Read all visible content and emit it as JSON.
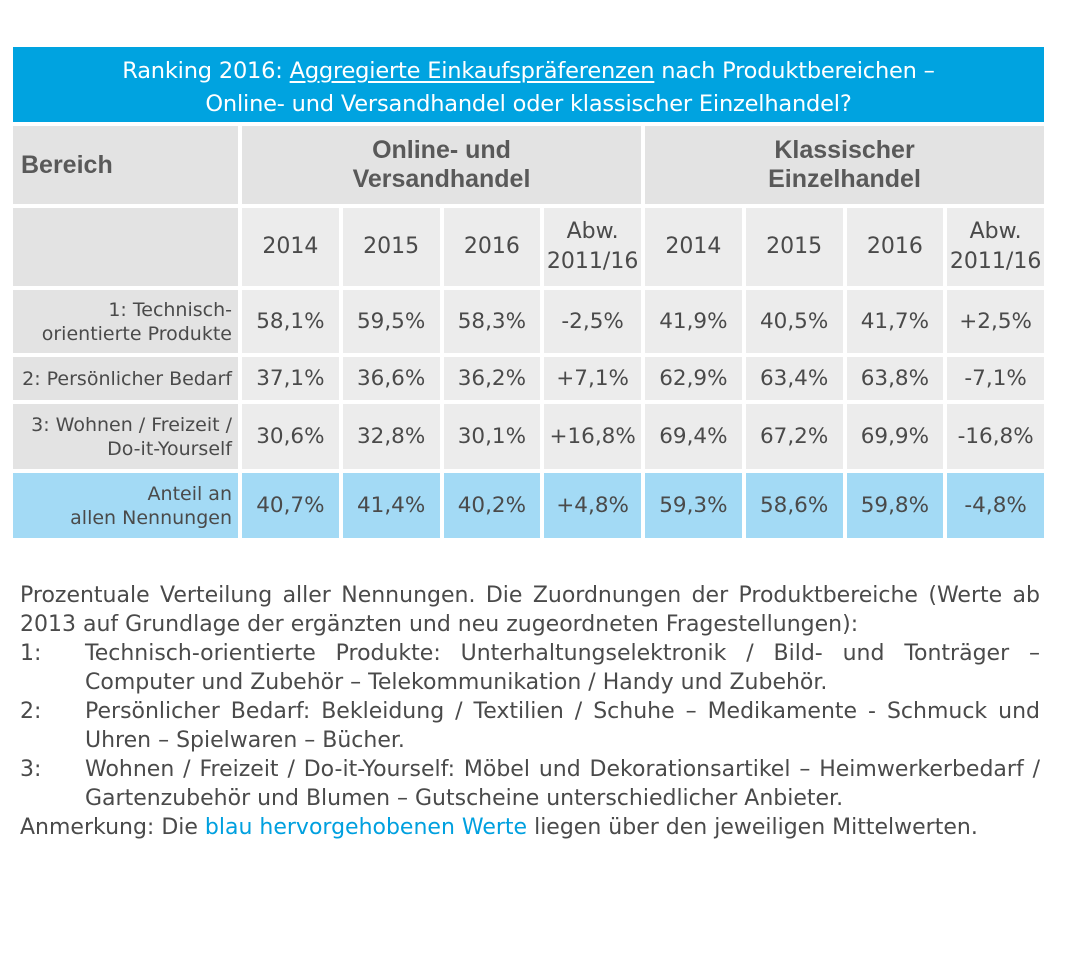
{
  "title": {
    "prefix": "Ranking 2016: ",
    "underlined": "Aggregierte Einkaufspräferenzen",
    "suffix": " nach Produktbereichen –",
    "line2": "Online- und Versandhandel oder klassischer Einzelhandel?"
  },
  "header": {
    "bereich": "Bereich",
    "online_line1": "Online- und",
    "online_line2": "Versandhandel",
    "klassisch_line1": "Klassischer",
    "klassisch_line2": "Einzelhandel",
    "years": [
      "2014",
      "2015",
      "2016"
    ],
    "abw_line1": "Abw.",
    "abw_line2": "2011/16"
  },
  "rows": [
    {
      "label_line1": "1: Technisch-",
      "label_line2": "orientierte Produkte",
      "online": [
        "58,1%",
        "59,5%",
        "58,3%",
        "-2,5%"
      ],
      "online_highlight": [
        true,
        true,
        true,
        false
      ],
      "klassisch": [
        "41,9%",
        "40,5%",
        "41,7%",
        "+2,5%"
      ],
      "klassisch_highlight": [
        false,
        false,
        false,
        false
      ]
    },
    {
      "label_line1": "2: Persönlicher Bedarf",
      "label_line2": "",
      "online": [
        "37,1%",
        "36,6%",
        "36,2%",
        "+7,1%"
      ],
      "online_highlight": [
        false,
        false,
        false,
        false
      ],
      "klassisch": [
        "62,9%",
        "63,4%",
        "63,8%",
        "-7,1%"
      ],
      "klassisch_highlight": [
        true,
        true,
        true,
        false
      ]
    },
    {
      "label_line1": "3: Wohnen / Freizeit /",
      "label_line2": "Do-it-Yourself",
      "online": [
        "30,6%",
        "32,8%",
        "30,1%",
        "+16,8%"
      ],
      "online_highlight": [
        false,
        false,
        false,
        false
      ],
      "klassisch": [
        "69,4%",
        "67,2%",
        "69,9%",
        "-16,8%"
      ],
      "klassisch_highlight": [
        true,
        true,
        true,
        false
      ]
    },
    {
      "label_line1": "Anteil an",
      "label_line2": "allen Nennungen",
      "online": [
        "40,7%",
        "41,4%",
        "40,2%",
        "+4,8%"
      ],
      "online_highlight": [
        false,
        false,
        false,
        false
      ],
      "klassisch": [
        "59,3%",
        "58,6%",
        "59,8%",
        "-4,8%"
      ],
      "klassisch_highlight": [
        false,
        false,
        false,
        false
      ]
    }
  ],
  "notes": {
    "intro": "Prozentuale Verteilung aller Nennungen. Die Zuordnungen der Produktbereiche (Werte ab 2013 auf Grundlage der ergänzten und neu zugeordneten Fragestellungen):",
    "items": [
      {
        "num": "1:",
        "text": "Technisch-orientierte Produkte: Unterhaltungselektronik / Bild- und Tonträger – Computer und Zubehör – Telekommunikation / Handy und Zubehör."
      },
      {
        "num": "2:",
        "text": "Persönlicher Bedarf: Bekleidung / Textilien / Schuhe – Medikamente - Schmuck und Uhren – Spielwaren – Bücher."
      },
      {
        "num": "3:",
        "text": "Wohnen / Freizeit / Do-it-Yourself: Möbel und Dekorationsartikel – Heimwerkerbedarf / Gartenzubehör und Blumen – Gutscheine unterschiedlicher Anbieter."
      }
    ],
    "remark_prefix": "Anmerkung: Die ",
    "remark_blue": "blau hervorgehobenen Werte",
    "remark_suffix": " liegen über den jeweiligen Mittelwerten."
  },
  "colors": {
    "title_bg": "#00a3e0",
    "highlight_text": "#00a0df",
    "header_bg": "#e3e3e3",
    "cell_bg": "#ececec",
    "total_row_bg": "#a3daf5"
  }
}
